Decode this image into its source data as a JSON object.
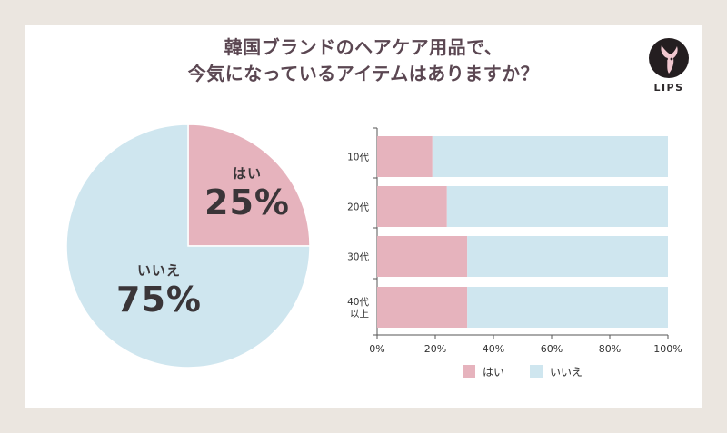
{
  "title": {
    "line1": "韓国ブランドのヘアケア用品で、",
    "line2": "今気になっているアイテムはありますか？"
  },
  "logo": {
    "text": "LIPS",
    "icon": "deer-logo-icon"
  },
  "colors": {
    "yes": "#e6b3bd",
    "no": "#cfe6ef",
    "text": "#3a3538",
    "title": "#5b4752"
  },
  "chart_data": [
    {
      "type": "pie",
      "title": "",
      "slices": [
        {
          "label": "はい",
          "value": 25,
          "display": "25%"
        },
        {
          "label": "いいえ",
          "value": 75,
          "display": "75%"
        }
      ]
    },
    {
      "type": "bar",
      "orientation": "horizontal",
      "stacked": true,
      "categories": [
        "10代",
        "20代",
        "30代",
        "40代\n以上"
      ],
      "category_lines": [
        [
          "10代"
        ],
        [
          "20代"
        ],
        [
          "30代"
        ],
        [
          "40代",
          "以上"
        ]
      ],
      "series": [
        {
          "name": "はい",
          "values": [
            19,
            24,
            31,
            31
          ]
        },
        {
          "name": "いいえ",
          "values": [
            81,
            76,
            69,
            69
          ]
        }
      ],
      "xlim": [
        0,
        100
      ],
      "xticks": [
        "0%",
        "20%",
        "40%",
        "60%",
        "80%",
        "100%"
      ],
      "xtick_values": [
        0,
        20,
        40,
        60,
        80,
        100
      ],
      "legend": [
        "はい",
        "いいえ"
      ],
      "legend_position": "bottom"
    }
  ]
}
